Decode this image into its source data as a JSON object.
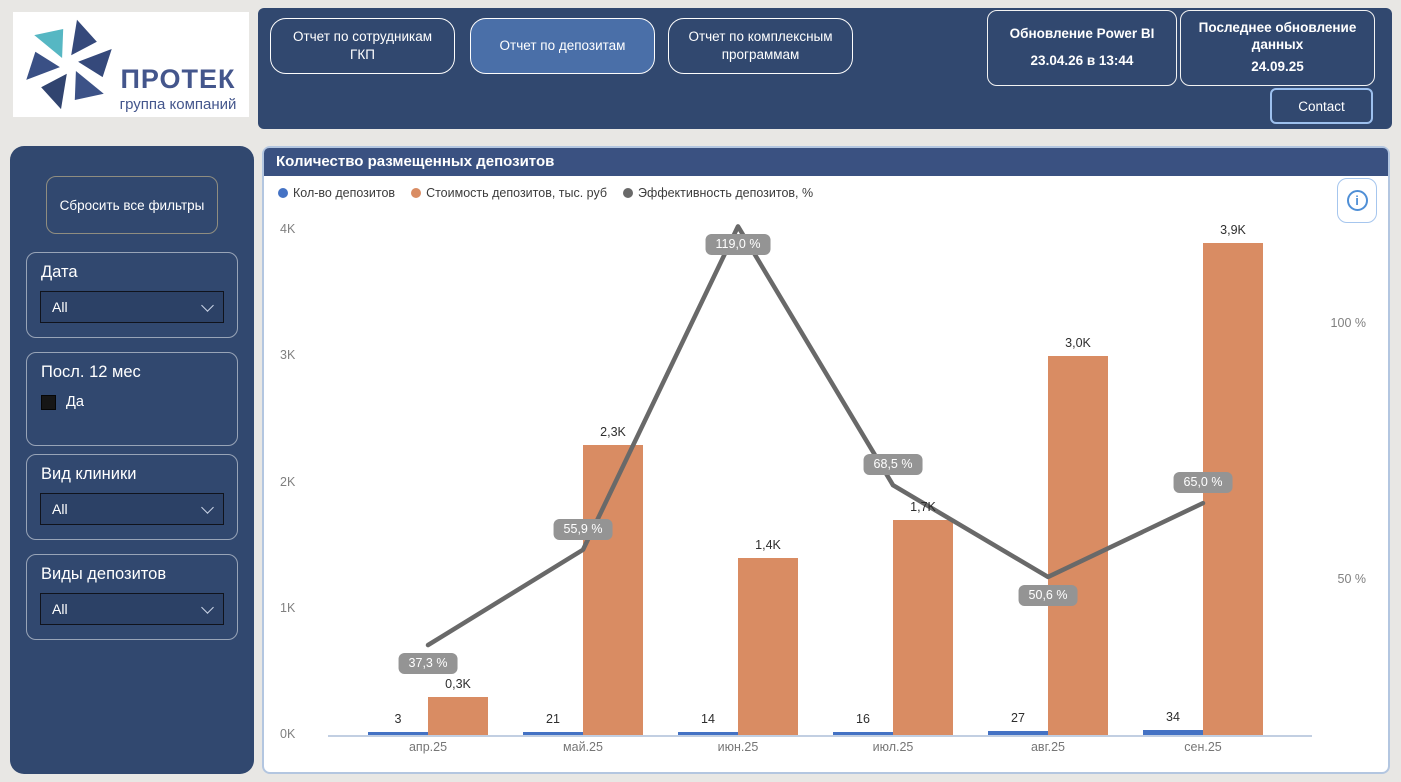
{
  "logo": {
    "brand": "ПРОТЕК",
    "subtitle": "группа компаний"
  },
  "header": {
    "nav": [
      {
        "label": "Отчет по сотрудникам ГКП",
        "active": false
      },
      {
        "label": "Отчет по депозитам",
        "active": true
      },
      {
        "label": "Отчет по комплексным программам",
        "active": false
      }
    ],
    "power_bi_update": {
      "title": "Обновление Power BI",
      "value": "23.04.26 в 13:44"
    },
    "data_update": {
      "title": "Последнее обновление данных",
      "value": "24.09.25"
    },
    "contact_label": "Contact"
  },
  "sidebar": {
    "reset_label": "Сбросить все фильтры",
    "filters": [
      {
        "title": "Дата",
        "type": "dropdown",
        "value": "All"
      },
      {
        "title": "Посл. 12 мес",
        "type": "checkbox",
        "option": "Да"
      },
      {
        "title": "Вид клиники",
        "type": "dropdown",
        "value": "All"
      },
      {
        "title": "Виды депозитов",
        "type": "dropdown",
        "value": "All"
      }
    ]
  },
  "chart": {
    "title": "Количество размещенных депозитов"
  },
  "chart_data": {
    "type": "bar",
    "subtype": "clustered-columns-with-line",
    "title": "Количество размещенных депозитов",
    "categories": [
      "апр.25",
      "май.25",
      "июн.25",
      "июл.25",
      "авг.25",
      "сен.25"
    ],
    "series": [
      {
        "name": "Кол-во депозитов",
        "kind": "bar",
        "axis": "left",
        "color": "#4472c4",
        "values": [
          3,
          21,
          14,
          16,
          27,
          34
        ],
        "labels": [
          "3",
          "21",
          "14",
          "16",
          "27",
          "34"
        ]
      },
      {
        "name": "Стоимость депозитов, тыс. руб",
        "kind": "bar",
        "axis": "left",
        "color": "#d98c63",
        "values": [
          300,
          2300,
          1400,
          1700,
          3000,
          3900
        ],
        "labels": [
          "0,3K",
          "2,3K",
          "1,4K",
          "1,7K",
          "3,0K",
          "3,9K"
        ]
      },
      {
        "name": "Эффективность депозитов, %",
        "kind": "line",
        "axis": "right",
        "color": "#696969",
        "values": [
          37.3,
          55.9,
          119.0,
          68.5,
          50.6,
          65.0
        ],
        "labels": [
          "37,3 %",
          "55,9 %",
          "119,0 %",
          "68,5 %",
          "50,6 %",
          "65,0 %"
        ]
      }
    ],
    "y_left": {
      "min": 0,
      "max": 4000,
      "ticks": [
        "0K",
        "1K",
        "2K",
        "3K",
        "4K"
      ]
    },
    "y_right": {
      "ticks": [
        {
          "label": "50 %",
          "value": 50
        },
        {
          "label": "100 %",
          "value": 100
        }
      ]
    },
    "legend_position": "top",
    "gridlines": false
  }
}
